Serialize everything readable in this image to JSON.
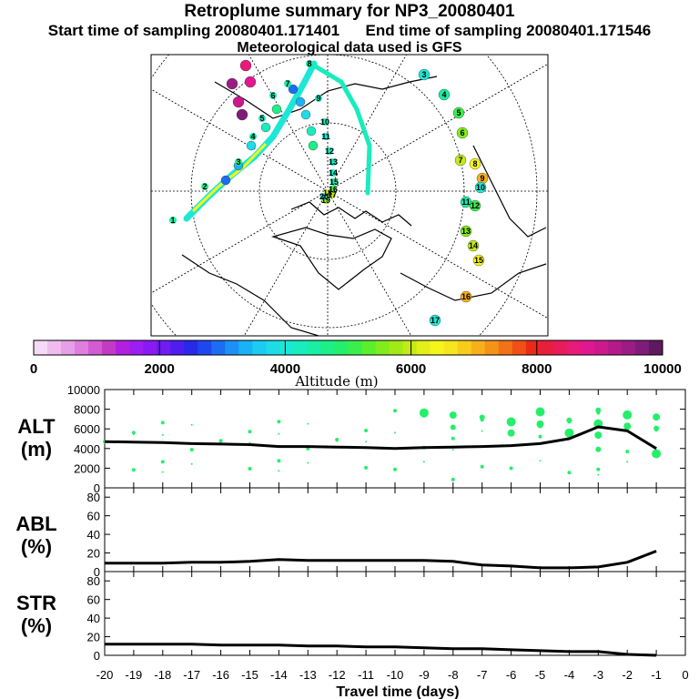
{
  "header": {
    "title": "Retroplume summary for NP3_20080401",
    "start_sampling": "Start time of sampling 20080401.171401",
    "end_sampling": "End time of sampling 20080401.171546",
    "met_data": "Meteorological data used is GFS"
  },
  "colorbar": {
    "title": "Altitude (m)",
    "tick_labels": [
      "0",
      "2000",
      "4000",
      "6000",
      "8000",
      "10000"
    ],
    "colors": [
      "#f6d9f6",
      "#efbcef",
      "#e79fe7",
      "#de7fde",
      "#d25cd2",
      "#c33ac3",
      "#b31fdf",
      "#9d1ef0",
      "#8a19f2",
      "#6f1cf5",
      "#4f1df2",
      "#2929e9",
      "#1f47ef",
      "#1c6df2",
      "#1c91f5",
      "#19b2f5",
      "#1ccbf2",
      "#1cdce8",
      "#1ce7d6",
      "#19ecbe",
      "#19eea2",
      "#1cef86",
      "#25ef6a",
      "#3aef4b",
      "#5bee2c",
      "#80ec1c",
      "#a2ea16",
      "#c3ea16",
      "#e3ef19",
      "#f5f51c",
      "#f8e61c",
      "#f8cc1a",
      "#f8b01a",
      "#f59218",
      "#f27216",
      "#ef5016",
      "#ea2a19",
      "#e81f3a",
      "#e81c5b",
      "#e81a7a",
      "#e0188f",
      "#cc1a8e",
      "#b51a8a",
      "#9c1c85",
      "#7f1c7a",
      "#5f1a5f"
    ]
  },
  "map": {
    "labels": [
      "1",
      "2",
      "3",
      "4",
      "5",
      "6",
      "7",
      "8",
      "9",
      "10",
      "11",
      "12",
      "13",
      "14",
      "15",
      "16",
      "17",
      "18",
      "19",
      "20"
    ]
  },
  "chart_data": [
    {
      "type": "line",
      "panel": "ALT",
      "ylabel_line1": "ALT",
      "ylabel_line2": "(m)",
      "x": [
        -20,
        -19,
        -18,
        -17,
        -16,
        -15,
        -14,
        -13,
        -12,
        -11,
        -10,
        -9,
        -8,
        -7,
        -6,
        -5,
        -4,
        -3,
        -2,
        -1
      ],
      "values": [
        4700,
        4650,
        4600,
        4500,
        4450,
        4400,
        4200,
        4200,
        4150,
        4100,
        4000,
        4100,
        4150,
        4200,
        4300,
        4500,
        5000,
        6200,
        5800,
        4000
      ],
      "ylim": [
        0,
        10000
      ],
      "yticks": [
        "0",
        "2000",
        "4000",
        "6000",
        "8000",
        "10000"
      ]
    },
    {
      "type": "line",
      "panel": "ABL",
      "ylabel_line1": "ABL",
      "ylabel_line2": "(%)",
      "x": [
        -20,
        -19,
        -18,
        -17,
        -16,
        -15,
        -14,
        -13,
        -12,
        -11,
        -10,
        -9,
        -8,
        -7,
        -6,
        -5,
        -4,
        -3,
        -2,
        -1
      ],
      "values": [
        9,
        9,
        9,
        10,
        10,
        11,
        13,
        12,
        12,
        12,
        12,
        12,
        11,
        7,
        6,
        4,
        4,
        5,
        10,
        22
      ],
      "ylim": [
        0,
        90
      ],
      "yticks": [
        "0",
        "20",
        "40",
        "60",
        "80"
      ]
    },
    {
      "type": "line",
      "panel": "STR",
      "ylabel_line1": "STR",
      "ylabel_line2": "(%)",
      "x": [
        -20,
        -19,
        -18,
        -17,
        -16,
        -15,
        -14,
        -13,
        -12,
        -11,
        -10,
        -9,
        -8,
        -7,
        -6,
        -5,
        -4,
        -3,
        -2,
        -1
      ],
      "values": [
        12,
        12,
        12,
        12,
        11,
        11,
        11,
        10,
        10,
        9,
        9,
        8,
        7,
        7,
        6,
        5,
        4,
        4,
        1,
        0
      ],
      "ylim": [
        0,
        90
      ],
      "yticks": [
        "0",
        "20",
        "40",
        "60",
        "80"
      ]
    },
    {
      "type": "axis",
      "xlabel": "Travel time (days)",
      "xticks": [
        "-20",
        "-19",
        "-18",
        "-17",
        "-16",
        "-15",
        "-14",
        "-13",
        "-12",
        "-11",
        "-10",
        "-9",
        "-8",
        "-7",
        "-6",
        "-5",
        "-4",
        "-3",
        "-2",
        "-1",
        "0"
      ],
      "xlim": [
        -20,
        0
      ]
    }
  ]
}
